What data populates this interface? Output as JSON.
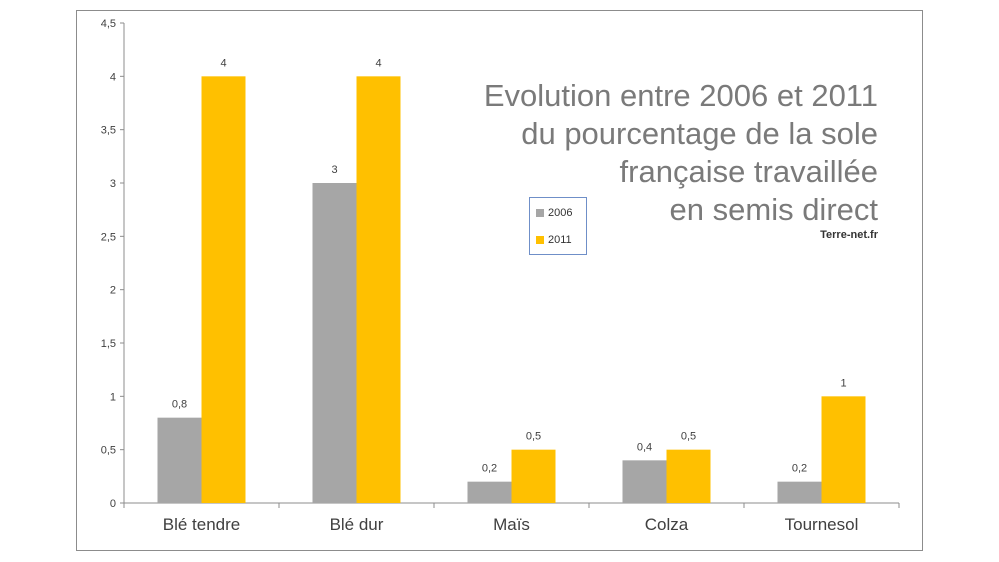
{
  "chart_data": {
    "type": "bar",
    "title_lines": [
      "Evolution entre 2006 et 2011",
      "du pourcentage de la sole",
      "française travaillée",
      "en semis direct"
    ],
    "source": "Terre-net.fr",
    "categories": [
      "Blé tendre",
      "Blé dur",
      "Maïs",
      "Colza",
      "Tournesol"
    ],
    "series": [
      {
        "name": "2006",
        "color": "#a6a6a6",
        "values": [
          0.8,
          3,
          0.2,
          0.4,
          0.2
        ],
        "labels": [
          "0,8",
          "3",
          "0,2",
          "0,4",
          "0,2"
        ]
      },
      {
        "name": "2011",
        "color": "#ffc000",
        "values": [
          4,
          4,
          0.5,
          0.5,
          1
        ],
        "labels": [
          "4",
          "4",
          "0,5",
          "0,5",
          "1"
        ]
      }
    ],
    "ylim": [
      0,
      4.5
    ],
    "yticks": [
      0,
      0.5,
      1,
      1.5,
      2,
      2.5,
      3,
      3.5,
      4,
      4.5
    ],
    "ytick_labels": [
      "0",
      "0,5",
      "1",
      "1,5",
      "2",
      "2,5",
      "3",
      "3,5",
      "4",
      "4,5"
    ],
    "legend_position": "center-right",
    "grid": false
  }
}
